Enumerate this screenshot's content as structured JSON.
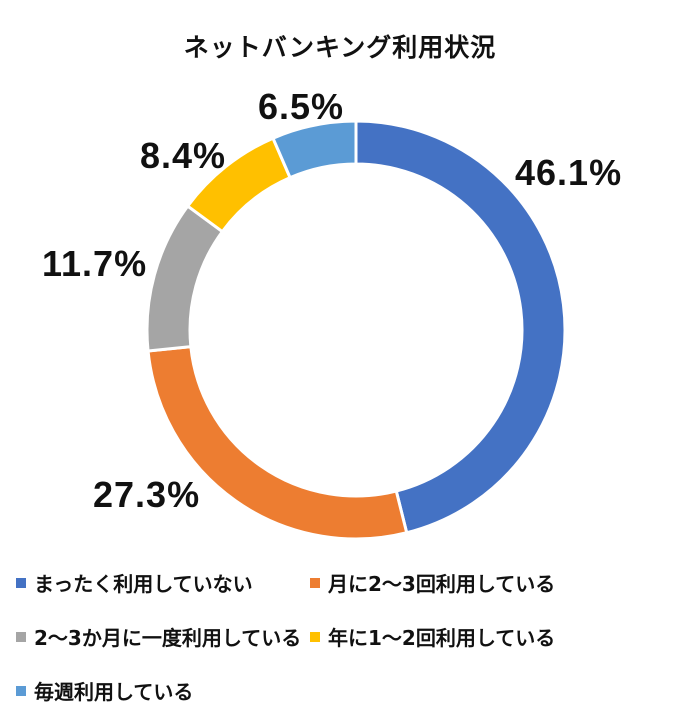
{
  "chart_data": {
    "type": "pie",
    "variant": "donut",
    "title": "ネットバンキング利用状況",
    "categories": [
      "まったく利用していない",
      "月に2〜3回利用している",
      "2〜3か月に一度利用している",
      "年に1〜2回利用している",
      "毎週利用している"
    ],
    "values": [
      46.1,
      27.3,
      11.7,
      8.4,
      6.5
    ],
    "labels": [
      "46.1%",
      "27.3%",
      "11.7%",
      "8.4%",
      "6.5%"
    ],
    "colors": [
      "#4472C4",
      "#ED7D31",
      "#A5A5A5",
      "#FFC000",
      "#5B9BD5"
    ],
    "unit": "%",
    "start_angle": "12 o'clock, clockwise",
    "legend_position": "bottom"
  },
  "title": "ネットバンキング利用状況",
  "labels": {
    "s0": "46.1%",
    "s1": "27.3%",
    "s2": "11.7%",
    "s3": "8.4%",
    "s4": "6.5%"
  },
  "legend": [
    {
      "label": "まったく利用していない",
      "color": "#4472C4"
    },
    {
      "label": "月に2〜3回利用している",
      "color": "#ED7D31"
    },
    {
      "label": "2〜3か月に一度利用している",
      "color": "#A5A5A5"
    },
    {
      "label": "年に1〜2回利用している",
      "color": "#FFC000"
    },
    {
      "label": "毎週利用している",
      "color": "#5B9BD5"
    }
  ]
}
